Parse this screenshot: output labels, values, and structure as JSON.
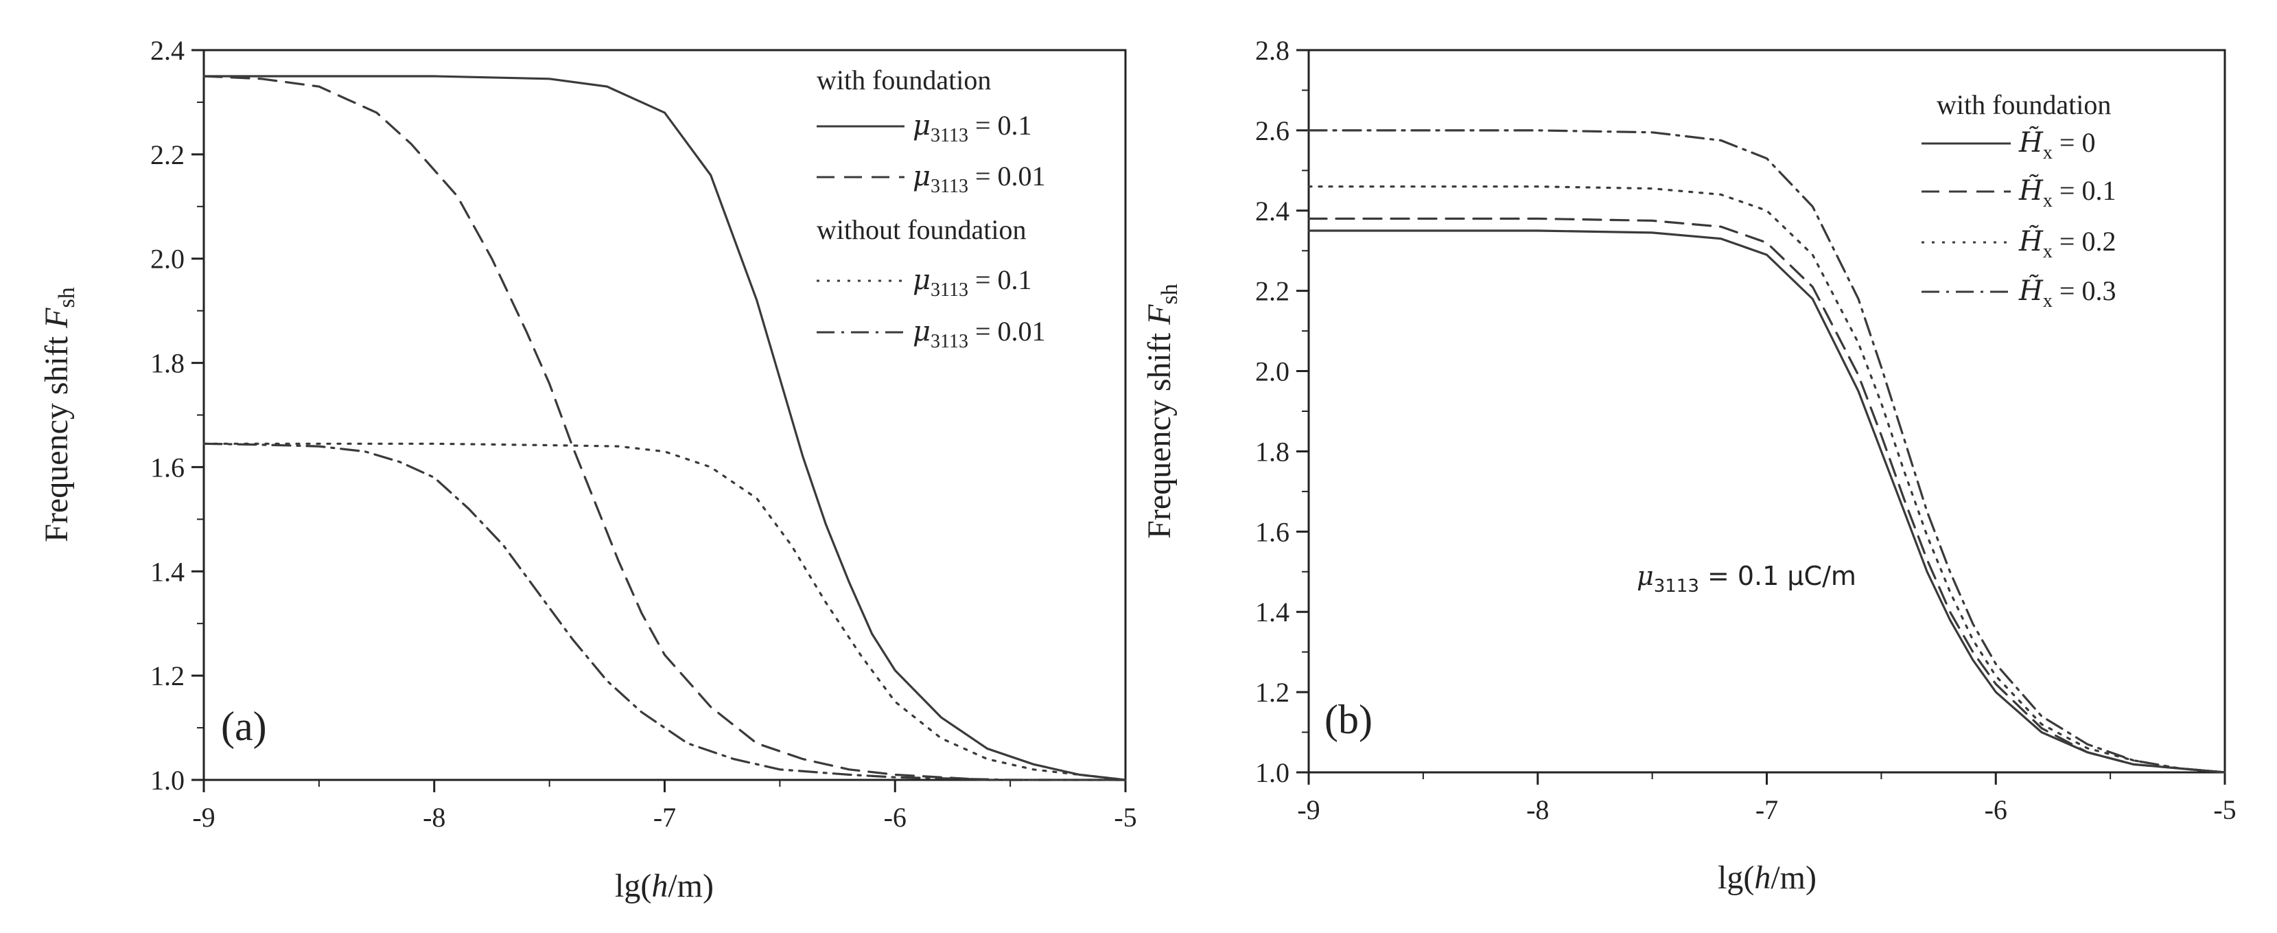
{
  "figure": {
    "line_color": "#3a3a3a",
    "text_color": "#222222"
  },
  "chart_data": [
    {
      "panel": "(a)",
      "type": "line",
      "xlabel_prefix": "lg(",
      "xlabel_var": "h",
      "xlabel_suffix": "/m)",
      "ylabel_text": "Frequency shift ",
      "ylabel_var": "F",
      "ylabel_sub": "sh",
      "xlim": [
        -9,
        -5
      ],
      "ylim": [
        1.0,
        2.4
      ],
      "xticks": [
        "-9",
        "-8",
        "-7",
        "-6",
        "-5"
      ],
      "yticks": [
        "1.0",
        "1.2",
        "1.4",
        "1.6",
        "1.8",
        "2.0",
        "2.2",
        "2.4"
      ],
      "legend": {
        "position": "top-right",
        "group1_title": "with foundation",
        "group2_title": "without foundation",
        "param_var": "μ",
        "param_sub": "3113",
        "entries": [
          " = 0.1",
          " = 0.01",
          " = 0.1",
          " = 0.01"
        ]
      },
      "series": [
        {
          "name": "with foundation, μ3113 = 0.1",
          "style": "solid",
          "x": [
            -9,
            -8.5,
            -8,
            -7.5,
            -7.25,
            -7,
            -6.8,
            -6.6,
            -6.5,
            -6.4,
            -6.3,
            -6.2,
            -6.1,
            -6.0,
            -5.8,
            -5.6,
            -5.4,
            -5.2,
            -5
          ],
          "y": [
            2.35,
            2.35,
            2.35,
            2.345,
            2.33,
            2.28,
            2.16,
            1.92,
            1.77,
            1.62,
            1.49,
            1.38,
            1.28,
            1.21,
            1.12,
            1.06,
            1.03,
            1.01,
            1.0
          ]
        },
        {
          "name": "with foundation, μ3113 = 0.01",
          "style": "dashed",
          "x": [
            -9,
            -8.75,
            -8.5,
            -8.25,
            -8.1,
            -7.9,
            -7.75,
            -7.6,
            -7.5,
            -7.4,
            -7.3,
            -7.2,
            -7.1,
            -7.0,
            -6.8,
            -6.6,
            -6.4,
            -6.2,
            -6.0,
            -5.6,
            -5
          ],
          "y": [
            2.35,
            2.345,
            2.33,
            2.28,
            2.22,
            2.12,
            2.0,
            1.86,
            1.76,
            1.64,
            1.53,
            1.42,
            1.32,
            1.24,
            1.14,
            1.07,
            1.04,
            1.02,
            1.01,
            1.0,
            1.0
          ]
        },
        {
          "name": "without foundation, μ3113 = 0.1",
          "style": "dotted",
          "x": [
            -9,
            -8.5,
            -8,
            -7.5,
            -7.2,
            -7.0,
            -6.8,
            -6.6,
            -6.45,
            -6.3,
            -6.15,
            -6.0,
            -5.8,
            -5.6,
            -5.4,
            -5.2,
            -5
          ],
          "y": [
            1.645,
            1.645,
            1.645,
            1.642,
            1.64,
            1.63,
            1.6,
            1.54,
            1.45,
            1.34,
            1.24,
            1.15,
            1.08,
            1.04,
            1.02,
            1.01,
            1.0
          ]
        },
        {
          "name": "without foundation, μ3113 = 0.01",
          "style": "dashdot",
          "x": [
            -9,
            -8.75,
            -8.5,
            -8.3,
            -8.15,
            -8.0,
            -7.85,
            -7.7,
            -7.55,
            -7.4,
            -7.25,
            -7.1,
            -6.9,
            -6.7,
            -6.5,
            -6.2,
            -6.0,
            -5.5,
            -5
          ],
          "y": [
            1.645,
            1.643,
            1.64,
            1.63,
            1.61,
            1.58,
            1.52,
            1.45,
            1.36,
            1.27,
            1.19,
            1.13,
            1.07,
            1.04,
            1.02,
            1.01,
            1.005,
            1.0,
            1.0
          ]
        }
      ]
    },
    {
      "panel": "(b)",
      "type": "line",
      "xlabel_prefix": "lg(",
      "xlabel_var": "h",
      "xlabel_suffix": "/m)",
      "ylabel_text": "Frequency shift ",
      "ylabel_var": "F",
      "ylabel_sub": "sh",
      "xlim": [
        -9,
        -5
      ],
      "ylim": [
        1.0,
        2.8
      ],
      "xticks": [
        "-9",
        "-8",
        "-7",
        "-6",
        "-5"
      ],
      "yticks": [
        "1.0",
        "1.2",
        "1.4",
        "1.6",
        "1.8",
        "2.0",
        "2.2",
        "2.4",
        "2.6",
        "2.8"
      ],
      "annotation": {
        "var": "μ",
        "sub": "3113",
        "text": " = 0.1 μC/m"
      },
      "legend": {
        "position": "top-right",
        "title": "with foundation",
        "param_var": "H̃",
        "param_sub": "x",
        "entries": [
          " = 0",
          " = 0.1",
          " = 0.2",
          " = 0.3"
        ]
      },
      "series": [
        {
          "name": "H̃x = 0",
          "style": "solid",
          "x": [
            -9,
            -8.5,
            -8,
            -7.5,
            -7.2,
            -7.0,
            -6.8,
            -6.6,
            -6.5,
            -6.4,
            -6.3,
            -6.2,
            -6.1,
            -6.0,
            -5.8,
            -5.6,
            -5.4,
            -5.2,
            -5
          ],
          "y": [
            2.35,
            2.35,
            2.35,
            2.345,
            2.33,
            2.29,
            2.18,
            1.95,
            1.8,
            1.65,
            1.5,
            1.38,
            1.28,
            1.2,
            1.1,
            1.05,
            1.02,
            1.01,
            1.0
          ]
        },
        {
          "name": "H̃x = 0.1",
          "style": "dashed",
          "x": [
            -9,
            -8.5,
            -8,
            -7.5,
            -7.2,
            -7.0,
            -6.8,
            -6.6,
            -6.5,
            -6.4,
            -6.3,
            -6.2,
            -6.1,
            -6.0,
            -5.8,
            -5.6,
            -5.4,
            -5.2,
            -5
          ],
          "y": [
            2.38,
            2.38,
            2.38,
            2.375,
            2.36,
            2.32,
            2.21,
            1.99,
            1.84,
            1.68,
            1.53,
            1.4,
            1.3,
            1.22,
            1.11,
            1.05,
            1.02,
            1.01,
            1.0
          ]
        },
        {
          "name": "H̃x = 0.2",
          "style": "dotted",
          "x": [
            -9,
            -8.5,
            -8,
            -7.5,
            -7.2,
            -7.0,
            -6.8,
            -6.6,
            -6.5,
            -6.4,
            -6.3,
            -6.2,
            -6.1,
            -6.0,
            -5.8,
            -5.6,
            -5.4,
            -5.2,
            -5
          ],
          "y": [
            2.46,
            2.46,
            2.46,
            2.455,
            2.44,
            2.4,
            2.29,
            2.07,
            1.92,
            1.75,
            1.59,
            1.45,
            1.33,
            1.24,
            1.12,
            1.06,
            1.03,
            1.01,
            1.0
          ]
        },
        {
          "name": "H̃x = 0.3",
          "style": "dashdot",
          "x": [
            -9,
            -8.5,
            -8,
            -7.5,
            -7.2,
            -7.0,
            -6.8,
            -6.6,
            -6.5,
            -6.4,
            -6.3,
            -6.2,
            -6.1,
            -6.0,
            -5.8,
            -5.6,
            -5.4,
            -5.2,
            -5
          ],
          "y": [
            2.6,
            2.6,
            2.6,
            2.595,
            2.575,
            2.53,
            2.41,
            2.18,
            2.01,
            1.83,
            1.65,
            1.5,
            1.37,
            1.27,
            1.14,
            1.07,
            1.03,
            1.01,
            1.0
          ]
        }
      ]
    }
  ]
}
